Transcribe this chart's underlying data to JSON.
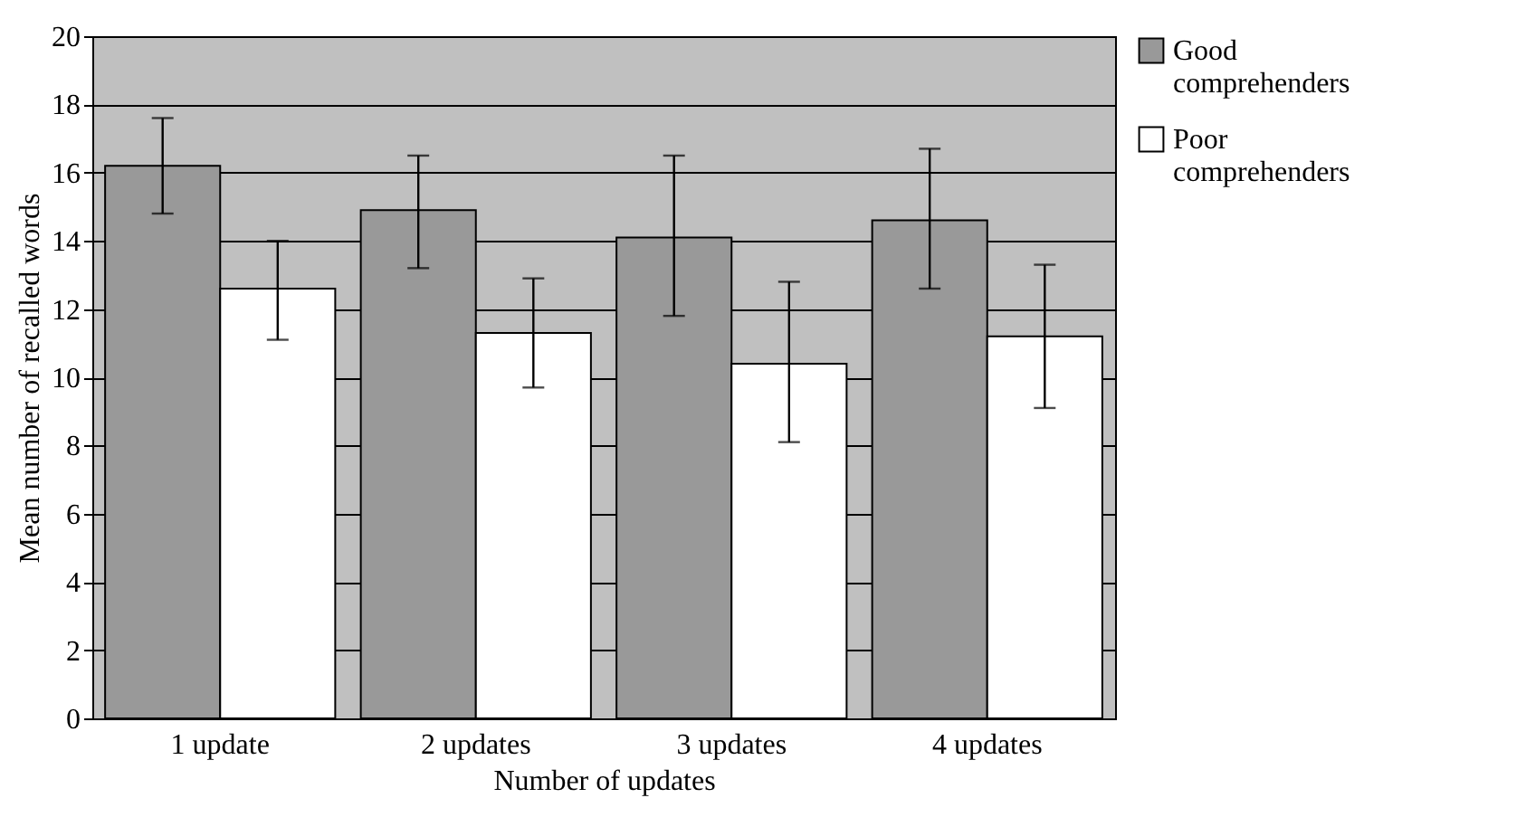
{
  "chart_data": {
    "type": "bar",
    "xlabel": "Number of updates",
    "ylabel": "Mean number of  recalled words",
    "categories": [
      "1 update",
      "2 updates",
      "3 updates",
      "4 updates"
    ],
    "series": [
      {
        "name": "Good comprehenders",
        "color": "#999999",
        "values": [
          16.2,
          14.9,
          14.1,
          14.6
        ],
        "errors": [
          [
            14.8,
            17.6
          ],
          [
            13.2,
            16.5
          ],
          [
            11.8,
            16.5
          ],
          [
            12.6,
            16.7
          ]
        ]
      },
      {
        "name": "Poor comprehenders",
        "color": "#ffffff",
        "values": [
          12.6,
          11.3,
          10.4,
          11.2
        ],
        "errors": [
          [
            11.1,
            14.0
          ],
          [
            9.7,
            12.9
          ],
          [
            8.1,
            12.8
          ],
          [
            9.1,
            13.3
          ]
        ]
      }
    ],
    "ylim": [
      0,
      20
    ],
    "yticks": [
      0,
      2,
      4,
      6,
      8,
      10,
      12,
      14,
      16,
      18,
      20
    ],
    "grid": "y",
    "legend": "right"
  }
}
